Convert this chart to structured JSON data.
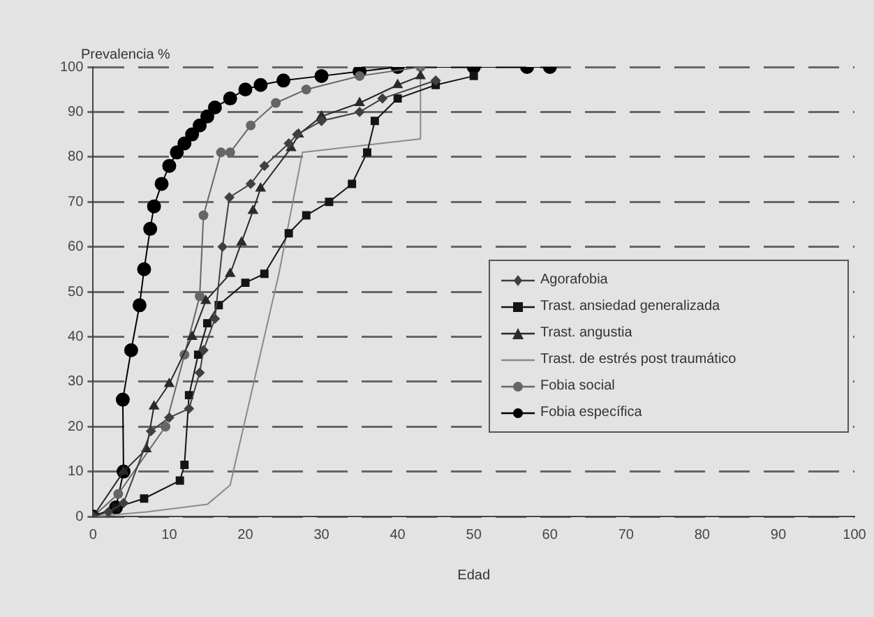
{
  "chart_data": {
    "type": "line",
    "xlabel": "Edad",
    "ylabel": "Prevalencia %",
    "xlim": [
      0,
      100
    ],
    "xticks": [
      0,
      10,
      20,
      30,
      40,
      50,
      60,
      70,
      80,
      90,
      100
    ],
    "ylim": [
      0,
      100
    ],
    "yticks": [
      0,
      10,
      20,
      30,
      40,
      50,
      60,
      70,
      80,
      90,
      100
    ],
    "grid": "y",
    "legend": "right",
    "line_style": "solid",
    "series": [
      {
        "name": "Agorafobia",
        "color": "#404040",
        "marker": "diamond",
        "x": [
          0,
          2,
          4,
          7.6,
          10,
          12.6,
          14,
          14.5,
          16,
          17,
          17.9,
          20.7,
          22.5,
          25.7,
          26.8,
          30,
          35,
          38,
          45
        ],
        "values": [
          0,
          1,
          3,
          19,
          22,
          24,
          32,
          37,
          44,
          60,
          71,
          74,
          78,
          83,
          85,
          88,
          90,
          93,
          97
        ]
      },
      {
        "name": "Trast. ansiedad generalizada",
        "color": "#141414",
        "marker": "square",
        "x": [
          0,
          3,
          6.7,
          11.4,
          12,
          12.6,
          13.8,
          15,
          16.5,
          20,
          22.5,
          25.7,
          28,
          31,
          34,
          36,
          37,
          40,
          45,
          50
        ],
        "values": [
          0,
          2,
          4,
          8,
          11.5,
          27,
          36,
          43,
          47,
          52,
          54,
          63,
          67,
          70,
          74,
          81,
          88,
          93,
          96,
          98
        ]
      },
      {
        "name": "Trast. angustia",
        "color": "#2a2a2a",
        "marker": "triangle",
        "x": [
          0,
          4,
          7,
          8,
          10,
          13,
          14.8,
          18,
          19.5,
          21,
          22,
          26,
          27,
          30,
          35,
          40,
          43
        ],
        "values": [
          0,
          10,
          15,
          24.5,
          29.5,
          40,
          48,
          54,
          61,
          68,
          73,
          82,
          85,
          89,
          92,
          96,
          98
        ]
      },
      {
        "name": "Trast. de estrés post traumático",
        "color": "#8a8a8a",
        "marker": "none",
        "x": [
          0,
          7,
          15,
          18,
          24.4,
          27.5,
          43,
          43
        ],
        "values": [
          0,
          1,
          2.7,
          7,
          54,
          81,
          84,
          100
        ]
      },
      {
        "name": "Fobia social",
        "color": "#666666",
        "marker": "circle",
        "x": [
          0,
          3.3,
          9.5,
          12,
          14,
          14.5,
          16.8,
          18,
          20.7,
          24,
          28,
          35,
          43
        ],
        "values": [
          0,
          5,
          20,
          36,
          49,
          67,
          81,
          81,
          87,
          92,
          95,
          98,
          100
        ]
      },
      {
        "name": "Fobia específica",
        "color": "#000000",
        "marker": "circle",
        "x": [
          0,
          3,
          4,
          3.9,
          5,
          6.1,
          6.7,
          7.5,
          8,
          9,
          10,
          11,
          12,
          13,
          14,
          15,
          16,
          18,
          20,
          22,
          25,
          30,
          35,
          40,
          50,
          57,
          60
        ],
        "values": [
          0,
          2,
          10,
          26,
          37,
          47,
          55,
          64,
          69,
          74,
          78,
          81,
          83,
          85,
          87,
          89,
          91,
          93,
          95,
          96,
          97,
          98,
          99,
          100,
          100,
          100,
          100
        ]
      }
    ]
  }
}
